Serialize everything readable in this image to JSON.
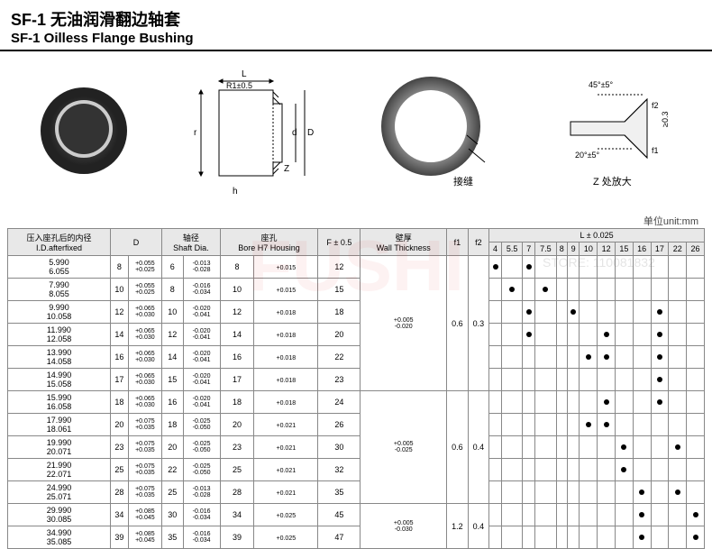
{
  "header": {
    "title_cn": "SF-1 无油润滑翻边轴套",
    "title_en": "SF-1 Oilless Flange Bushing"
  },
  "diagrams": {
    "d1_labels": {
      "L": "L",
      "R1": "R1±0.5",
      "r": "r",
      "d": "d",
      "D": "D",
      "h": "h",
      "Z": "Z"
    },
    "d2_label": "接缝",
    "d3_labels": {
      "ang45": "45°±5°",
      "ang20": "20°±5°",
      "f1": "f1",
      "f2": "f2",
      "ge": "≥0.3",
      "zoom": "Z 处放大"
    }
  },
  "unit": "单位unit:mm",
  "table": {
    "headers": {
      "id_fixed_cn": "压入座孔后的内径",
      "id_fixed_en": "I.D.afterfixed",
      "D": "D",
      "shaft_cn": "轴径",
      "shaft_en": "Shaft Dia.",
      "bore_cn": "座孔",
      "bore_en": "Bore H7 Housing",
      "F": "F ± 0.5",
      "wall_cn": "壁厚",
      "wall_en": "Wall Thickness",
      "f1": "f1",
      "f2": "f2",
      "L": "L ± 0.025"
    },
    "L_cols": [
      "4",
      "5.5",
      "7",
      "7.5",
      "8",
      "9",
      "10",
      "12",
      "15",
      "16",
      "17",
      "22",
      "26"
    ],
    "wall_groups": [
      {
        "wall": "+0.005\n-0.020",
        "f1": "0.6",
        "f2": "0.3",
        "span": 6
      },
      {
        "wall": "+0.005\n-0.025",
        "f1": "0.6",
        "f2": "0.4",
        "span": 5
      },
      {
        "wall": "+0.005\n-0.030",
        "f1": "1.2",
        "f2": "0.4",
        "span": 2
      }
    ],
    "rows": [
      {
        "id": "5.990\n6.055",
        "D": "8",
        "Dtol": "+0.055\n+0.025",
        "shaft": "6",
        "stol": "-0.013\n-0.028",
        "bore": "8",
        "btol": "+0.015",
        "F": "12",
        "dots": [
          1,
          0,
          1,
          0,
          0,
          0,
          0,
          0,
          0,
          0,
          0,
          0,
          0
        ]
      },
      {
        "id": "7.990\n8.055",
        "D": "10",
        "Dtol": "+0.055\n+0.025",
        "shaft": "8",
        "stol": "-0.016\n-0.034",
        "bore": "10",
        "btol": "+0.015",
        "F": "15",
        "dots": [
          0,
          1,
          0,
          1,
          0,
          0,
          0,
          0,
          0,
          0,
          0,
          0,
          0
        ]
      },
      {
        "id": "9.990\n10.058",
        "D": "12",
        "Dtol": "+0.065\n+0.030",
        "shaft": "10",
        "stol": "-0.020\n-0.041",
        "bore": "12",
        "btol": "+0.018",
        "F": "18",
        "dots": [
          0,
          0,
          1,
          0,
          0,
          1,
          0,
          0,
          0,
          0,
          1,
          0,
          0
        ]
      },
      {
        "id": "11.990\n12.058",
        "D": "14",
        "Dtol": "+0.065\n+0.030",
        "shaft": "12",
        "stol": "-0.020\n-0.041",
        "bore": "14",
        "btol": "+0.018",
        "F": "20",
        "dots": [
          0,
          0,
          1,
          0,
          0,
          0,
          0,
          1,
          0,
          0,
          1,
          0,
          0
        ]
      },
      {
        "id": "13.990\n14.058",
        "D": "16",
        "Dtol": "+0.065\n+0.030",
        "shaft": "14",
        "stol": "-0.020\n-0.041",
        "bore": "16",
        "btol": "+0.018",
        "F": "22",
        "dots": [
          0,
          0,
          0,
          0,
          0,
          0,
          1,
          1,
          0,
          0,
          1,
          0,
          0
        ]
      },
      {
        "id": "14.990\n15.058",
        "D": "17",
        "Dtol": "+0.065\n+0.030",
        "shaft": "15",
        "stol": "-0.020\n-0.041",
        "bore": "17",
        "btol": "+0.018",
        "F": "23",
        "dots": [
          0,
          0,
          0,
          0,
          0,
          0,
          0,
          0,
          0,
          0,
          1,
          0,
          0
        ]
      },
      {
        "id": "15.990\n16.058",
        "D": "18",
        "Dtol": "+0.065\n+0.030",
        "shaft": "16",
        "stol": "-0.020\n-0.041",
        "bore": "18",
        "btol": "+0.018",
        "F": "24",
        "dots": [
          0,
          0,
          0,
          0,
          0,
          0,
          0,
          1,
          0,
          0,
          1,
          0,
          0
        ]
      },
      {
        "id": "17.990\n18.061",
        "D": "20",
        "Dtol": "+0.075\n+0.035",
        "shaft": "18",
        "stol": "-0.025\n-0.050",
        "bore": "20",
        "btol": "+0.021",
        "F": "26",
        "dots": [
          0,
          0,
          0,
          0,
          0,
          0,
          1,
          1,
          0,
          0,
          0,
          0,
          0
        ]
      },
      {
        "id": "19.990\n20.071",
        "D": "23",
        "Dtol": "+0.075\n+0.035",
        "shaft": "20",
        "stol": "-0.025\n-0.050",
        "bore": "23",
        "btol": "+0.021",
        "F": "30",
        "dots": [
          0,
          0,
          0,
          0,
          0,
          0,
          0,
          0,
          1,
          0,
          0,
          1,
          0
        ]
      },
      {
        "id": "21.990\n22.071",
        "D": "25",
        "Dtol": "+0.075\n+0.035",
        "shaft": "22",
        "stol": "-0.025\n-0.050",
        "bore": "25",
        "btol": "+0.021",
        "F": "32",
        "dots": [
          0,
          0,
          0,
          0,
          0,
          0,
          0,
          0,
          1,
          0,
          0,
          0,
          0
        ]
      },
      {
        "id": "24.990\n25.071",
        "D": "28",
        "Dtol": "+0.075\n+0.035",
        "shaft": "25",
        "stol": "-0.013\n-0.028",
        "bore": "28",
        "btol": "+0.021",
        "F": "35",
        "dots": [
          0,
          0,
          0,
          0,
          0,
          0,
          0,
          0,
          0,
          1,
          0,
          1,
          0
        ]
      },
      {
        "id": "29.990\n30.085",
        "D": "34",
        "Dtol": "+0.085\n+0.045",
        "shaft": "30",
        "stol": "-0.016\n-0.034",
        "bore": "34",
        "btol": "+0.025",
        "F": "45",
        "dots": [
          0,
          0,
          0,
          0,
          0,
          0,
          0,
          0,
          0,
          1,
          0,
          0,
          1
        ]
      },
      {
        "id": "34.990\n35.085",
        "D": "39",
        "Dtol": "+0.085\n+0.045",
        "shaft": "35",
        "stol": "-0.016\n-0.034",
        "bore": "39",
        "btol": "+0.025",
        "F": "47",
        "dots": [
          0,
          0,
          0,
          0,
          0,
          0,
          0,
          0,
          0,
          1,
          0,
          0,
          1
        ]
      }
    ]
  },
  "watermark": {
    "main": "FUSHI",
    "store": "STORE: 110081832"
  }
}
